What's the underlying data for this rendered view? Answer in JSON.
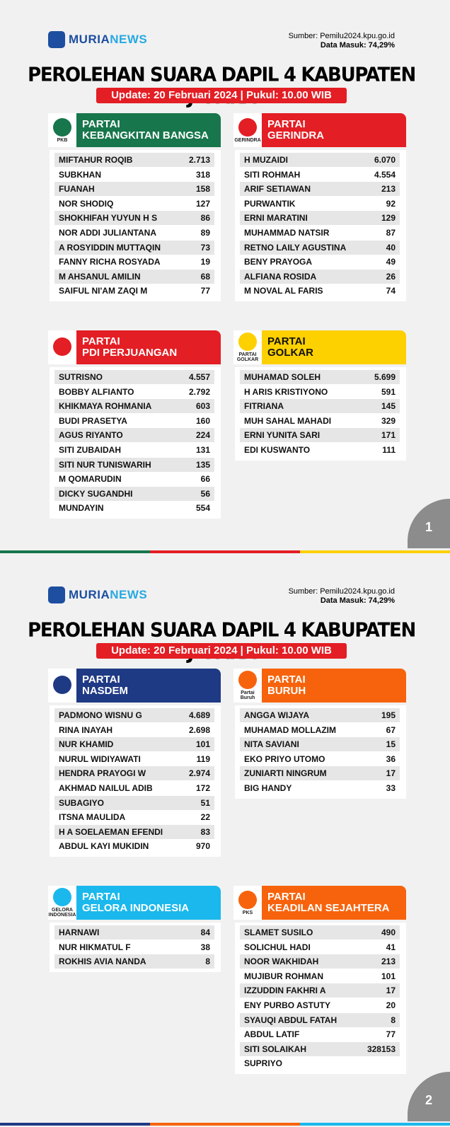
{
  "pages": [
    {
      "brand": {
        "part1": "MURIA",
        "part2": "NEWS"
      },
      "source": "Sumber: Pemilu2024.kpu.go.id",
      "data_in": "Data Masuk: 74,29%",
      "title": "PEROLEHAN SUARA DAPIL 4 KABUPATEN JEPARA",
      "update": "Update: 20 Februari 2024 | Pukul: 10.00 WIB",
      "page_number": "1",
      "parties": [
        {
          "line1": "PARTAI",
          "line2": "KEBANGKITAN BANGSA",
          "logo_text": "PKB",
          "color": "#17764b",
          "text_color": "#ffffff",
          "rows": [
            {
              "name": "MIFTAHUR ROQIB",
              "votes": "2.713"
            },
            {
              "name": "SUBKHAN",
              "votes": "318"
            },
            {
              "name": "FUANAH",
              "votes": "158"
            },
            {
              "name": "NOR SHODIQ",
              "votes": "127"
            },
            {
              "name": "SHOKHIFAH YUYUN H S",
              "votes": "86"
            },
            {
              "name": "NOR ADDI JULIANTANA",
              "votes": "89"
            },
            {
              "name": "A ROSYIDDIN MUTTAQIN",
              "votes": "73"
            },
            {
              "name": "FANNY RICHA ROSYADA",
              "votes": "19"
            },
            {
              "name": "M AHSANUL AMILIN",
              "votes": "68"
            },
            {
              "name": "SAIFUL NI'AM ZAQI M",
              "votes": "77"
            }
          ]
        },
        {
          "line1": "PARTAI",
          "line2": "GERINDRA",
          "logo_text": "GERINDRA",
          "color": "#e31e24",
          "text_color": "#ffffff",
          "rows": [
            {
              "name": "H MUZAIDI",
              "votes": "6.070"
            },
            {
              "name": "SITI ROHMAH",
              "votes": "4.554"
            },
            {
              "name": "ARIF SETIAWAN",
              "votes": "213"
            },
            {
              "name": "PURWANTIK",
              "votes": "92"
            },
            {
              "name": "ERNI MARATINI",
              "votes": "129"
            },
            {
              "name": "MUHAMMAD NATSIR",
              "votes": "87"
            },
            {
              "name": "RETNO LAILY AGUSTINA",
              "votes": "40"
            },
            {
              "name": "BENY PRAYOGA",
              "votes": "49"
            },
            {
              "name": "ALFIANA ROSIDA",
              "votes": "26"
            },
            {
              "name": "M NOVAL AL FARIS",
              "votes": "74"
            }
          ]
        },
        {
          "line1": "PARTAI",
          "line2": "PDI PERJUANGAN",
          "color": "#e31e24",
          "text_color": "#ffffff",
          "rows": [
            {
              "name": "SUTRISNO",
              "votes": "4.557"
            },
            {
              "name": "BOBBY ALFIANTO",
              "votes": "2.792"
            },
            {
              "name": "KHIKMAYA ROHMANIA",
              "votes": "603"
            },
            {
              "name": "BUDI PRASETYA",
              "votes": "160"
            },
            {
              "name": "AGUS RIYANTO",
              "votes": "224"
            },
            {
              "name": "SITI ZUBAIDAH",
              "votes": "131"
            },
            {
              "name": "SITI NUR TUNISWARIH",
              "votes": "135"
            },
            {
              "name": "M QOMARUDIN",
              "votes": "66"
            },
            {
              "name": "DICKY SUGANDHI",
              "votes": "56"
            },
            {
              "name": "MUNDAYIN",
              "votes": "554"
            }
          ]
        },
        {
          "line1": "PARTAI",
          "line2": "GOLKAR",
          "logo_text": "PARTAI GOLKAR",
          "color": "#fdd000",
          "text_color": "#111111",
          "rows": [
            {
              "name": "MUHAMAD SOLEH",
              "votes": "5.699"
            },
            {
              "name": "H ARIS KRISTIYONO",
              "votes": "591"
            },
            {
              "name": "FITRIANA",
              "votes": "145"
            },
            {
              "name": "MUH SAHAL MAHADI",
              "votes": "329"
            },
            {
              "name": "ERNI YUNITA SARI",
              "votes": "171"
            },
            {
              "name": "EDI KUSWANTO",
              "votes": "111"
            }
          ]
        }
      ]
    },
    {
      "brand": {
        "part1": "MURIA",
        "part2": "NEWS"
      },
      "source": "Sumber: Pemilu2024.kpu.go.id",
      "data_in": "Data Masuk: 74,29%",
      "title": "PEROLEHAN SUARA DAPIL 4 KABUPATEN JEPARA",
      "update": "Update: 20 Februari 2024 | Pukul: 10.00 WIB",
      "page_number": "2",
      "parties": [
        {
          "line1": "PARTAI",
          "line2": "NASDEM",
          "color": "#1f3a84",
          "text_color": "#ffffff",
          "rows": [
            {
              "name": "PADMONO WISNU G",
              "votes": "4.689"
            },
            {
              "name": "RINA INAYAH",
              "votes": "2.698"
            },
            {
              "name": "NUR KHAMID",
              "votes": "101"
            },
            {
              "name": "NURUL WIDIYAWATI",
              "votes": "119"
            },
            {
              "name": "HENDRA PRAYOGI W",
              "votes": "2.974"
            },
            {
              "name": "AKHMAD NAILUL ADIB",
              "votes": "172"
            },
            {
              "name": "SUBAGIYO",
              "votes": "51"
            },
            {
              "name": "ITSNA MAULIDA",
              "votes": "22"
            },
            {
              "name": "H A SOELAEMAN EFENDI",
              "votes": "83"
            },
            {
              "name": "ABDUL KAYI MUKIDIN",
              "votes": "970"
            }
          ]
        },
        {
          "line1": "PARTAI",
          "line2": "BURUH",
          "logo_text": "Partai Buruh",
          "color": "#f7630c",
          "text_color": "#ffffff",
          "rows": [
            {
              "name": "ANGGA WIJAYA",
              "votes": "195"
            },
            {
              "name": "MUHAMAD MOLLAZIM",
              "votes": "67"
            },
            {
              "name": "NITA SAVIANI",
              "votes": "15"
            },
            {
              "name": "EKO PRIYO UTOMO",
              "votes": "36"
            },
            {
              "name": "ZUNIARTI NINGRUM",
              "votes": "17"
            },
            {
              "name": "BIG HANDY",
              "votes": "33"
            }
          ]
        },
        {
          "line1": "PARTAI",
          "line2": "GELORA INDONESIA",
          "logo_text": "GELORA INDONESIA",
          "color": "#1ab8ec",
          "text_color": "#ffffff",
          "rows": [
            {
              "name": "HARNAWI",
              "votes": "84"
            },
            {
              "name": "NUR HIKMATUL F",
              "votes": "38"
            },
            {
              "name": "ROKHIS AVIA NANDA",
              "votes": "8"
            }
          ]
        },
        {
          "line1": "PARTAI",
          "line2": "KEADILAN SEJAHTERA",
          "logo_text": "PKS",
          "color": "#f7630c",
          "text_color": "#ffffff",
          "rows": [
            {
              "name": "SLAMET SUSILO",
              "votes": "490"
            },
            {
              "name": "SOLICHUL HADI",
              "votes": "41"
            },
            {
              "name": "NOOR WAKHIDAH",
              "votes": "213"
            },
            {
              "name": "MUJIBUR ROHMAN",
              "votes": "101"
            },
            {
              "name": "IZZUDDIN FAKHRI A",
              "votes": "17"
            },
            {
              "name": "ENY PURBO ASTUTY",
              "votes": "20"
            },
            {
              "name": "SYAUQI ABDUL FATAH",
              "votes": "8"
            },
            {
              "name": "ABDUL LATIF",
              "votes": "77"
            },
            {
              "name": "SITI SOLAIKAH",
              "votes": "328153"
            },
            {
              "name": "SUPRIYO"
            }
          ]
        }
      ]
    }
  ]
}
